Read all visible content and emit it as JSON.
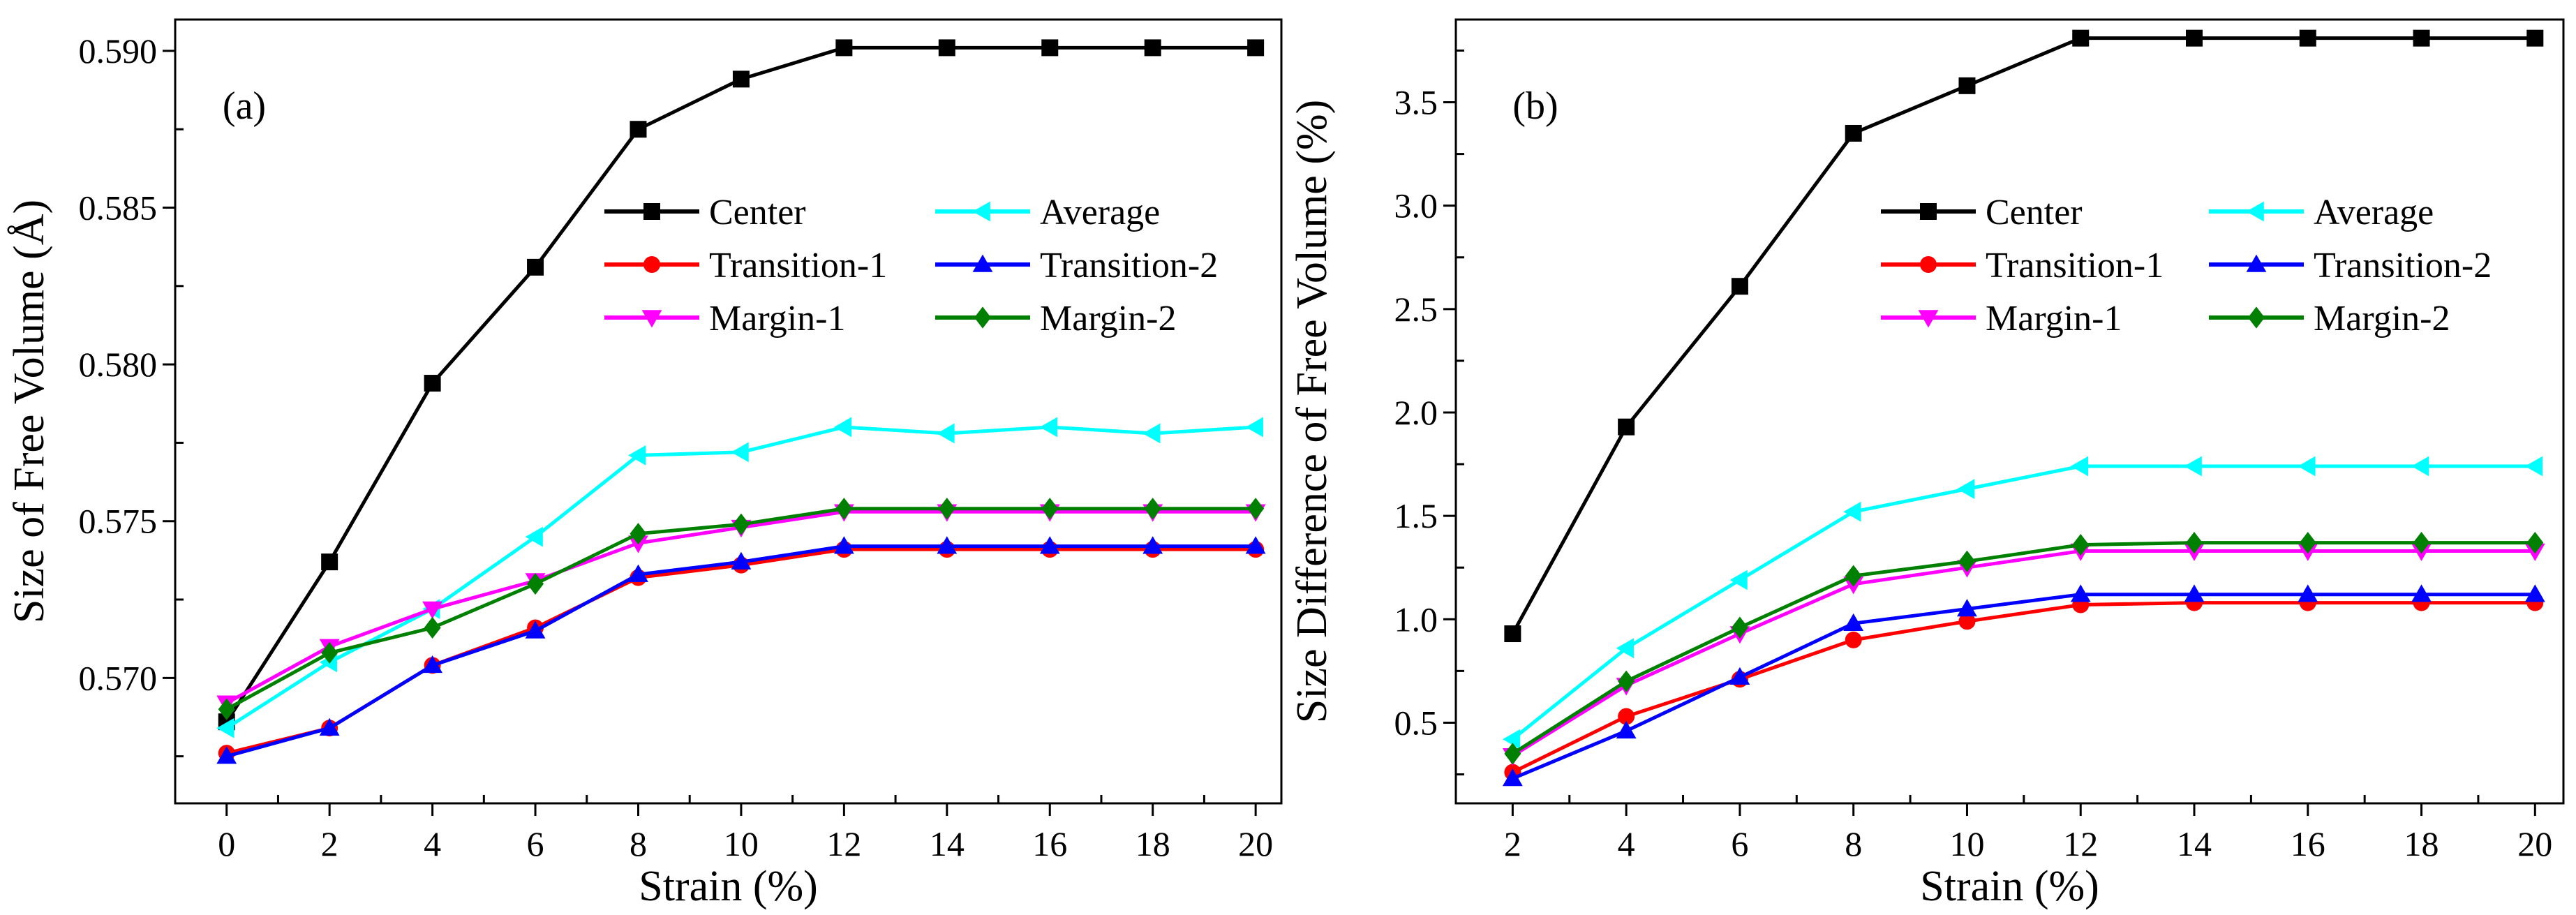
{
  "chart_data": [
    {
      "type": "line",
      "panel_label": "(a)",
      "xlabel": "Strain (%)",
      "ylabel": "Size of Free Volume (Å)",
      "xlim": [
        -1,
        20.5
      ],
      "ylim": [
        0.566,
        0.591
      ],
      "xticks": [
        0,
        2,
        4,
        6,
        8,
        10,
        12,
        14,
        16,
        18,
        20
      ],
      "xtick_labels": [
        "0",
        "2",
        "4",
        "6",
        "8",
        "10",
        "12",
        "14",
        "16",
        "18",
        "20"
      ],
      "yticks": [
        0.57,
        0.575,
        0.58,
        0.585,
        0.59
      ],
      "ytick_labels": [
        "0.570",
        "0.575",
        "0.580",
        "0.585",
        "0.590"
      ],
      "legend_position": "upper-right",
      "x": [
        0,
        2,
        4,
        6,
        8,
        10,
        12,
        14,
        16,
        18,
        20
      ],
      "series": [
        {
          "name": "Center",
          "color": "#000000",
          "marker": "square",
          "values": [
            0.5686,
            0.5737,
            0.5794,
            0.5831,
            0.5875,
            0.5891,
            0.5901,
            0.5901,
            0.5901,
            0.5901,
            0.5901
          ]
        },
        {
          "name": "Average",
          "color": "#00FFFF",
          "marker": "triangle-left",
          "values": [
            0.5684,
            0.5705,
            0.5722,
            0.5745,
            0.5771,
            0.5772,
            0.578,
            0.5778,
            0.578,
            0.5778,
            0.578
          ]
        },
        {
          "name": "Transition-1",
          "color": "#FF0000",
          "marker": "circle",
          "values": [
            0.5676,
            0.5684,
            0.5704,
            0.5716,
            0.5732,
            0.5736,
            0.5741,
            0.5741,
            0.5741,
            0.5741,
            0.5741
          ]
        },
        {
          "name": "Transition-2",
          "color": "#0000FF",
          "marker": "triangle-up",
          "values": [
            0.5675,
            0.5684,
            0.5704,
            0.5715,
            0.5733,
            0.5737,
            0.5742,
            0.5742,
            0.5742,
            0.5742,
            0.5742
          ]
        },
        {
          "name": "Margin-1",
          "color": "#FF00FF",
          "marker": "triangle-down",
          "values": [
            0.5692,
            0.571,
            0.5722,
            0.5731,
            0.5743,
            0.5748,
            0.5753,
            0.5753,
            0.5753,
            0.5753,
            0.5753
          ]
        },
        {
          "name": "Margin-2",
          "color": "#008000",
          "marker": "diamond",
          "values": [
            0.569,
            0.5708,
            0.5716,
            0.573,
            0.5746,
            0.5749,
            0.5754,
            0.5754,
            0.5754,
            0.5754,
            0.5754
          ]
        }
      ]
    },
    {
      "type": "line",
      "panel_label": "(b)",
      "xlabel": "Strain (%)",
      "ylabel": "Size Difference of Free Volume (%)",
      "xlim": [
        1,
        20.5
      ],
      "ylim": [
        0.11,
        3.9
      ],
      "xticks": [
        2,
        4,
        6,
        8,
        10,
        12,
        14,
        16,
        18,
        20
      ],
      "xtick_labels": [
        "2",
        "4",
        "6",
        "8",
        "10",
        "12",
        "14",
        "16",
        "18",
        "20"
      ],
      "yticks": [
        0.5,
        1.0,
        1.5,
        2.0,
        2.5,
        3.0,
        3.5
      ],
      "ytick_labels": [
        "0.5",
        "1.0",
        "1.5",
        "2.0",
        "2.5",
        "3.0",
        "3.5"
      ],
      "legend_position": "upper-right",
      "x": [
        2,
        4,
        6,
        8,
        10,
        12,
        14,
        16,
        18,
        20
      ],
      "series": [
        {
          "name": "Center",
          "color": "#000000",
          "marker": "square",
          "values": [
            0.93,
            1.93,
            2.61,
            3.35,
            3.58,
            3.81,
            3.81,
            3.81,
            3.81,
            3.81
          ]
        },
        {
          "name": "Average",
          "color": "#00FFFF",
          "marker": "triangle-left",
          "values": [
            0.42,
            0.86,
            1.19,
            1.52,
            1.63,
            1.74,
            1.74,
            1.74,
            1.74,
            1.74
          ]
        },
        {
          "name": "Transition-1",
          "color": "#FF0000",
          "marker": "circle",
          "values": [
            0.26,
            0.53,
            0.71,
            0.9,
            0.99,
            1.07,
            1.08,
            1.08,
            1.08,
            1.08
          ]
        },
        {
          "name": "Transition-2",
          "color": "#0000FF",
          "marker": "triangle-up",
          "values": [
            0.23,
            0.46,
            0.72,
            0.98,
            1.05,
            1.12,
            1.12,
            1.12,
            1.12,
            1.12
          ]
        },
        {
          "name": "Margin-1",
          "color": "#FF00FF",
          "marker": "triangle-down",
          "values": [
            0.34,
            0.68,
            0.93,
            1.17,
            1.25,
            1.33,
            1.33,
            1.33,
            1.33,
            1.33
          ]
        },
        {
          "name": "Margin-2",
          "color": "#008000",
          "marker": "diamond",
          "values": [
            0.35,
            0.7,
            0.96,
            1.21,
            1.28,
            1.36,
            1.37,
            1.37,
            1.37,
            1.37
          ]
        }
      ]
    }
  ]
}
